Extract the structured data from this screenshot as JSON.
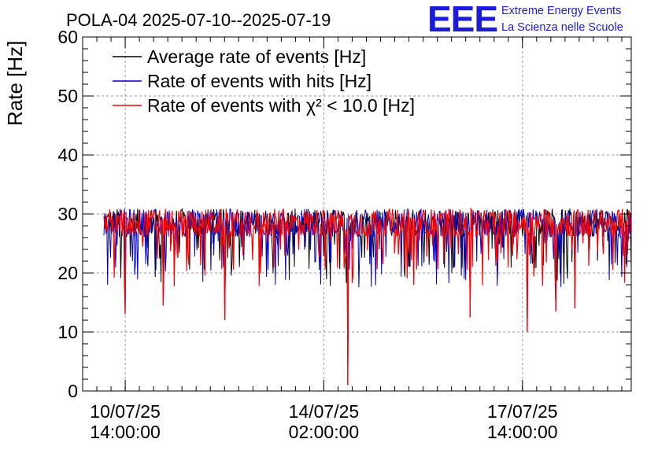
{
  "chart_data": {
    "type": "line",
    "title": "POLA-04 2025-07-10--2025-07-19",
    "ylabel": "Rate [Hz]",
    "xlabel": "",
    "ylim": [
      0,
      60
    ],
    "yticks": [
      0,
      10,
      20,
      30,
      40,
      50,
      60
    ],
    "xrange": [
      "2025-07-09 20:00",
      "2025-07-19 12:00"
    ],
    "xticks": [
      {
        "at": "2025-07-10 14:00",
        "date": "10/07/25",
        "time": "14:00:00"
      },
      {
        "at": "2025-07-14 02:00",
        "date": "14/07/25",
        "time": "02:00:00"
      },
      {
        "at": "2025-07-17 14:00",
        "date": "17/07/25",
        "time": "14:00:00"
      }
    ],
    "grid": true,
    "legend_position": "top-left",
    "series": [
      {
        "name": "Average rate of events [Hz]",
        "color": "#000000",
        "x_start": "2025-07-10 05:00",
        "x_end": "2025-07-19 12:00",
        "mean": 28.5,
        "spread": 1.5
      },
      {
        "name": "Rate of events with hits [Hz]",
        "color": "#0000cc",
        "x_start": "2025-07-10 05:00",
        "x_end": "2025-07-19 12:00",
        "mean": 28.5,
        "spread": 1.5
      },
      {
        "name": "Rate of events with χ² < 10.0 [Hz]",
        "color": "#ff0000",
        "x_start": "2025-07-10 05:00",
        "x_end": "2025-07-19 12:00",
        "mean": 28.5,
        "spread": 1.5,
        "typical_range": [
          22,
          32
        ]
      }
    ],
    "dips": [
      {
        "x": "2025-07-10 14:00",
        "y": 13
      },
      {
        "x": "2025-07-11 06:00",
        "y": 14.5
      },
      {
        "x": "2025-07-12 08:00",
        "y": 12
      },
      {
        "x": "2025-07-14 12:00",
        "y": 1
      },
      {
        "x": "2025-07-15 16:00",
        "y": 18
      },
      {
        "x": "2025-07-16 16:00",
        "y": 12.5
      },
      {
        "x": "2025-07-17 16:00",
        "y": 10
      },
      {
        "x": "2025-07-18 04:00",
        "y": 13.5
      },
      {
        "x": "2025-07-18 12:00",
        "y": 14
      }
    ]
  },
  "logo": {
    "text": "EEE",
    "line1": "Extreme Energy Events",
    "line2": "La Scienza nelle Scuole"
  }
}
